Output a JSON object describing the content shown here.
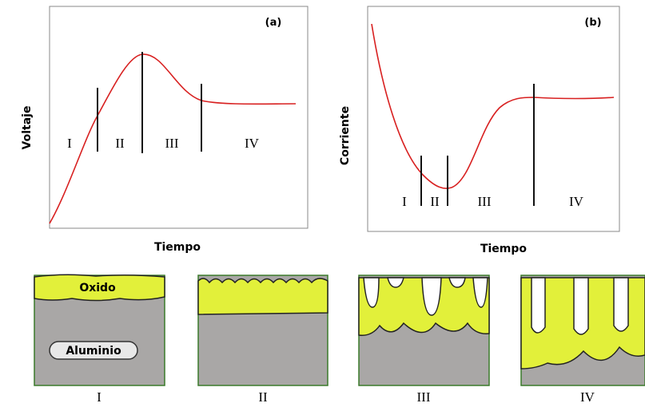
{
  "panels": [
    {
      "label": "(a)",
      "y_label": "Voltaje",
      "x_label": "Tiempo",
      "phases": [
        "I",
        "II",
        "III",
        "IV"
      ]
    },
    {
      "label": "(b)",
      "y_label": "Corriente",
      "x_label": "Tiempo",
      "phases": [
        "I",
        "II",
        "III",
        "IV"
      ]
    }
  ],
  "stages": {
    "oxide_label": "Oxido",
    "metal_label": "Aluminio",
    "labels": [
      "I",
      "II",
      "III",
      "IV"
    ]
  }
}
